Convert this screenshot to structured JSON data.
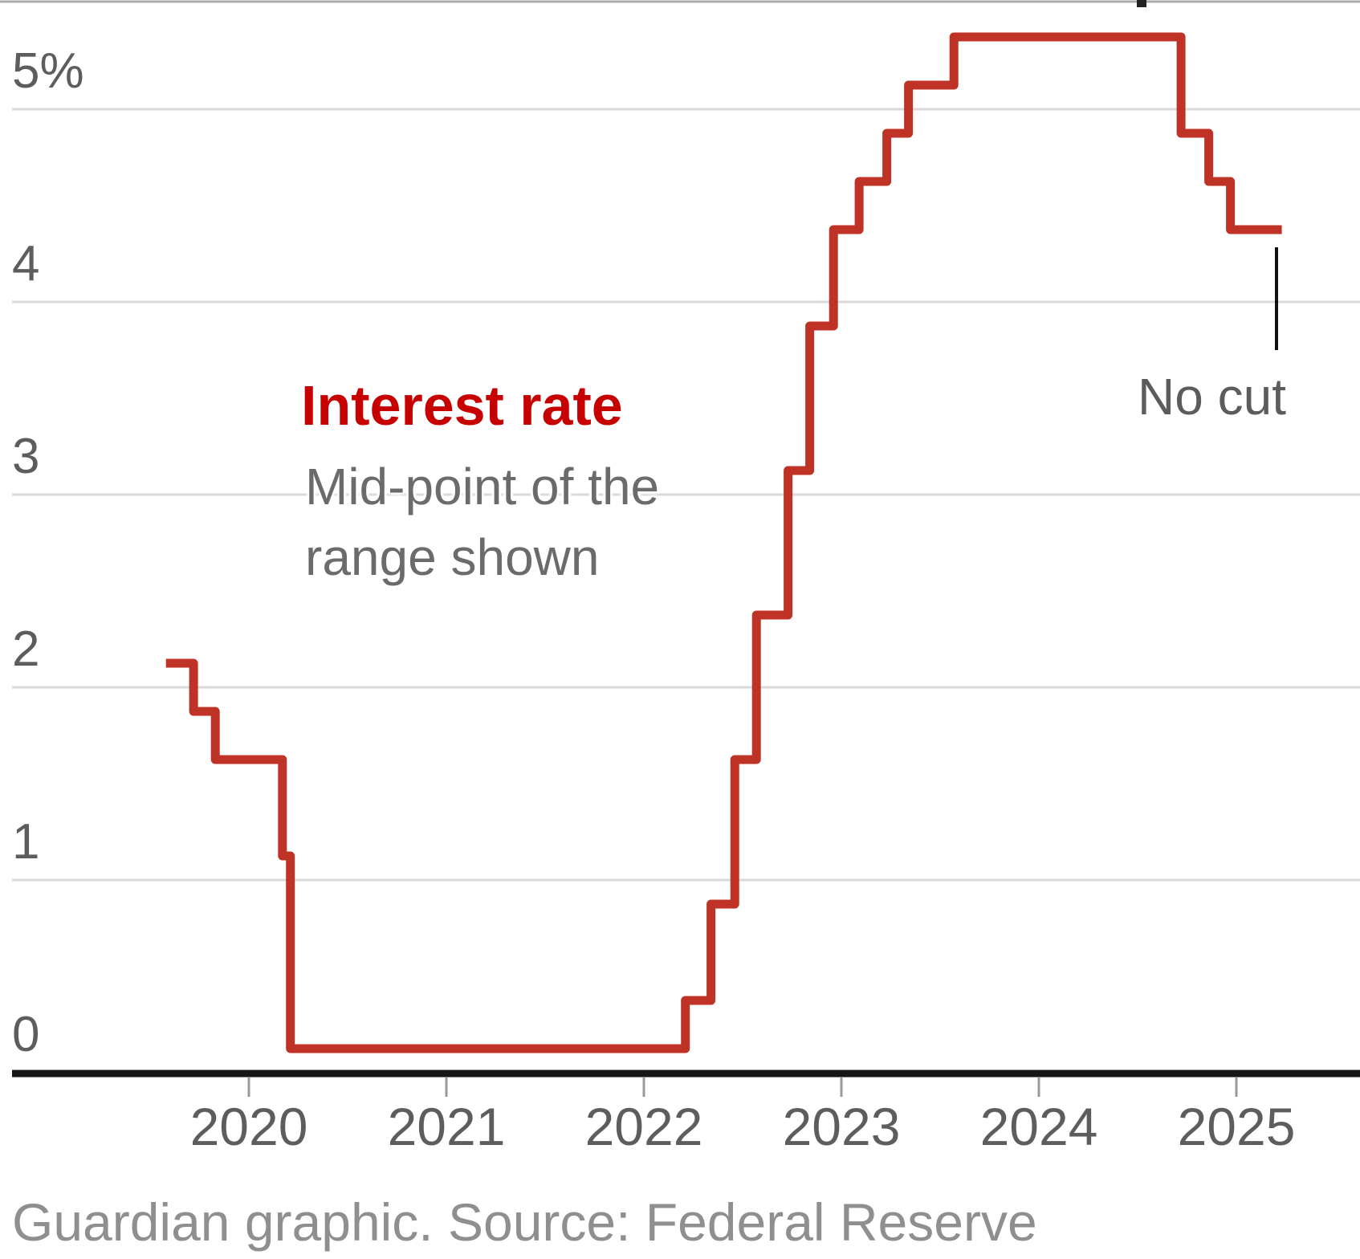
{
  "chart_data": {
    "type": "line",
    "step": true,
    "title": "Interest rate",
    "subtitle_line1": "Mid-point of the",
    "subtitle_line2": "range shown",
    "annotation_no_cut": "No cut",
    "unit": "%",
    "y_ticks": [
      {
        "value": 5,
        "label": "5%"
      },
      {
        "value": 4,
        "label": "4"
      },
      {
        "value": 3,
        "label": "3"
      },
      {
        "value": 2,
        "label": "2"
      },
      {
        "value": 1,
        "label": "1"
      },
      {
        "value": 0,
        "label": "0"
      }
    ],
    "x_ticks": [
      {
        "value": 2020,
        "label": "2020"
      },
      {
        "value": 2021,
        "label": "2021"
      },
      {
        "value": 2022,
        "label": "2022"
      },
      {
        "value": 2023,
        "label": "2023"
      },
      {
        "value": 2024,
        "label": "2024"
      },
      {
        "value": 2025,
        "label": "2025"
      }
    ],
    "xlim": [
      2018.8,
      2025.63
    ],
    "ylim": [
      0,
      5.57
    ],
    "grid": true,
    "series": [
      {
        "name": "Interest rate",
        "points": [
          [
            2019.58,
            2.125
          ],
          [
            2019.72,
            1.875
          ],
          [
            2019.83,
            1.625
          ],
          [
            2020.17,
            1.125
          ],
          [
            2020.21,
            0.125
          ],
          [
            2022.21,
            0.375
          ],
          [
            2022.34,
            0.875
          ],
          [
            2022.46,
            1.625
          ],
          [
            2022.57,
            2.375
          ],
          [
            2022.73,
            3.125
          ],
          [
            2022.84,
            3.875
          ],
          [
            2022.96,
            4.375
          ],
          [
            2023.09,
            4.625
          ],
          [
            2023.23,
            4.875
          ],
          [
            2023.34,
            5.125
          ],
          [
            2023.57,
            5.375
          ],
          [
            2024.72,
            4.875
          ],
          [
            2024.86,
            4.625
          ],
          [
            2024.97,
            4.375
          ]
        ],
        "end_x": 2025.23,
        "last_value": 4.375
      }
    ],
    "callout": {
      "text": "No cut",
      "x": 2025.2,
      "points_to_value": 4.375
    }
  },
  "footer": {
    "credit": "Guardian graphic. Source: Federal Reserve"
  },
  "colors": {
    "line_red": "#bf3226",
    "title_red": "#c70000",
    "grid_gray": "#d9d9d9",
    "axis_black": "#161616",
    "tick_gray": "#9a9a9a",
    "label_gray": "#5d5d5d",
    "footer_gray": "#8f8f8f",
    "no_cut_gray": "#5c5c5c",
    "callout_black": "#111111",
    "top_crop_line_gray": "#ababab"
  }
}
